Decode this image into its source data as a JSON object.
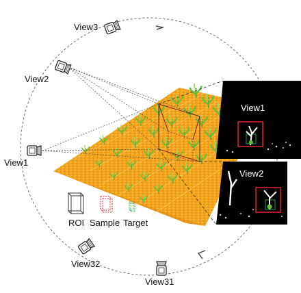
{
  "views": {
    "view1": "View1",
    "view2": "View2",
    "view3": "View3",
    "view31": "View31",
    "view32": "View32"
  },
  "insets": {
    "view1_title": "View1",
    "view2_title": "View2"
  },
  "legend": {
    "roi": "ROI",
    "sample": "Sample",
    "target": "Target"
  },
  "colors": {
    "field": "#f2a31a",
    "field_dark": "#d9860c",
    "plant": "#5cc23a",
    "inset_bg": "#000000",
    "sample_box": "#e8212b",
    "target_box": "#2e9e4a",
    "roi_box": "#333333",
    "orbit": "#555555"
  },
  "icons": [
    "camera-icon"
  ]
}
